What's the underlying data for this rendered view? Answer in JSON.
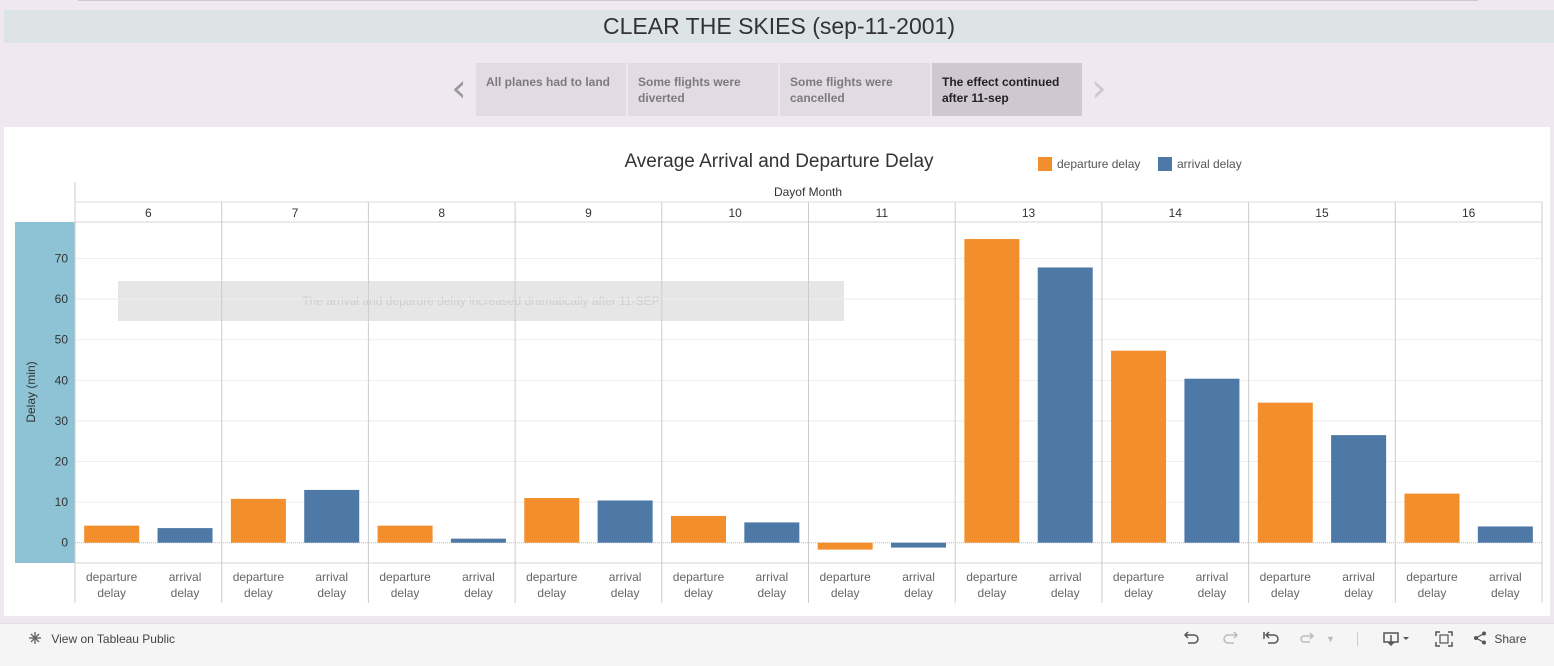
{
  "header": {
    "title": "CLEAR THE SKIES (sep-11-2001)"
  },
  "story": {
    "tabs": [
      {
        "label": "All planes had to land",
        "active": false
      },
      {
        "label": "Some flights were diverted",
        "active": false
      },
      {
        "label": "Some flights were cancelled",
        "active": false
      },
      {
        "label": "The effect continued after 11-sep",
        "active": true
      }
    ]
  },
  "annotation": "The arrival and deparure delay increased dramatically after 11-SEP",
  "chart_data": {
    "type": "bar",
    "title": "Average Arrival and Departure Delay",
    "xlabel": "Dayof Month",
    "ylabel": "Delay (min)",
    "ylim": [
      -5,
      79
    ],
    "yticks": [
      0,
      10,
      20,
      30,
      40,
      50,
      60,
      70
    ],
    "grid": true,
    "legend_position": "top-right",
    "categories": [
      "6",
      "7",
      "8",
      "9",
      "10",
      "11",
      "13",
      "14",
      "15",
      "16"
    ],
    "series": [
      {
        "name": "departure delay",
        "color": "#f28e2b",
        "values": [
          4.2,
          10.8,
          4.2,
          11.0,
          6.6,
          -1.7,
          74.8,
          47.3,
          34.5,
          12.1
        ]
      },
      {
        "name": "arrival delay",
        "color": "#4e79a7",
        "values": [
          3.6,
          13.0,
          1.0,
          10.4,
          5.0,
          -1.2,
          67.8,
          40.4,
          26.5,
          4.0
        ]
      }
    ],
    "sub_labels": [
      "departure delay",
      "arrival delay"
    ]
  },
  "footer": {
    "view_link": "View on Tableau Public",
    "share": "Share"
  }
}
